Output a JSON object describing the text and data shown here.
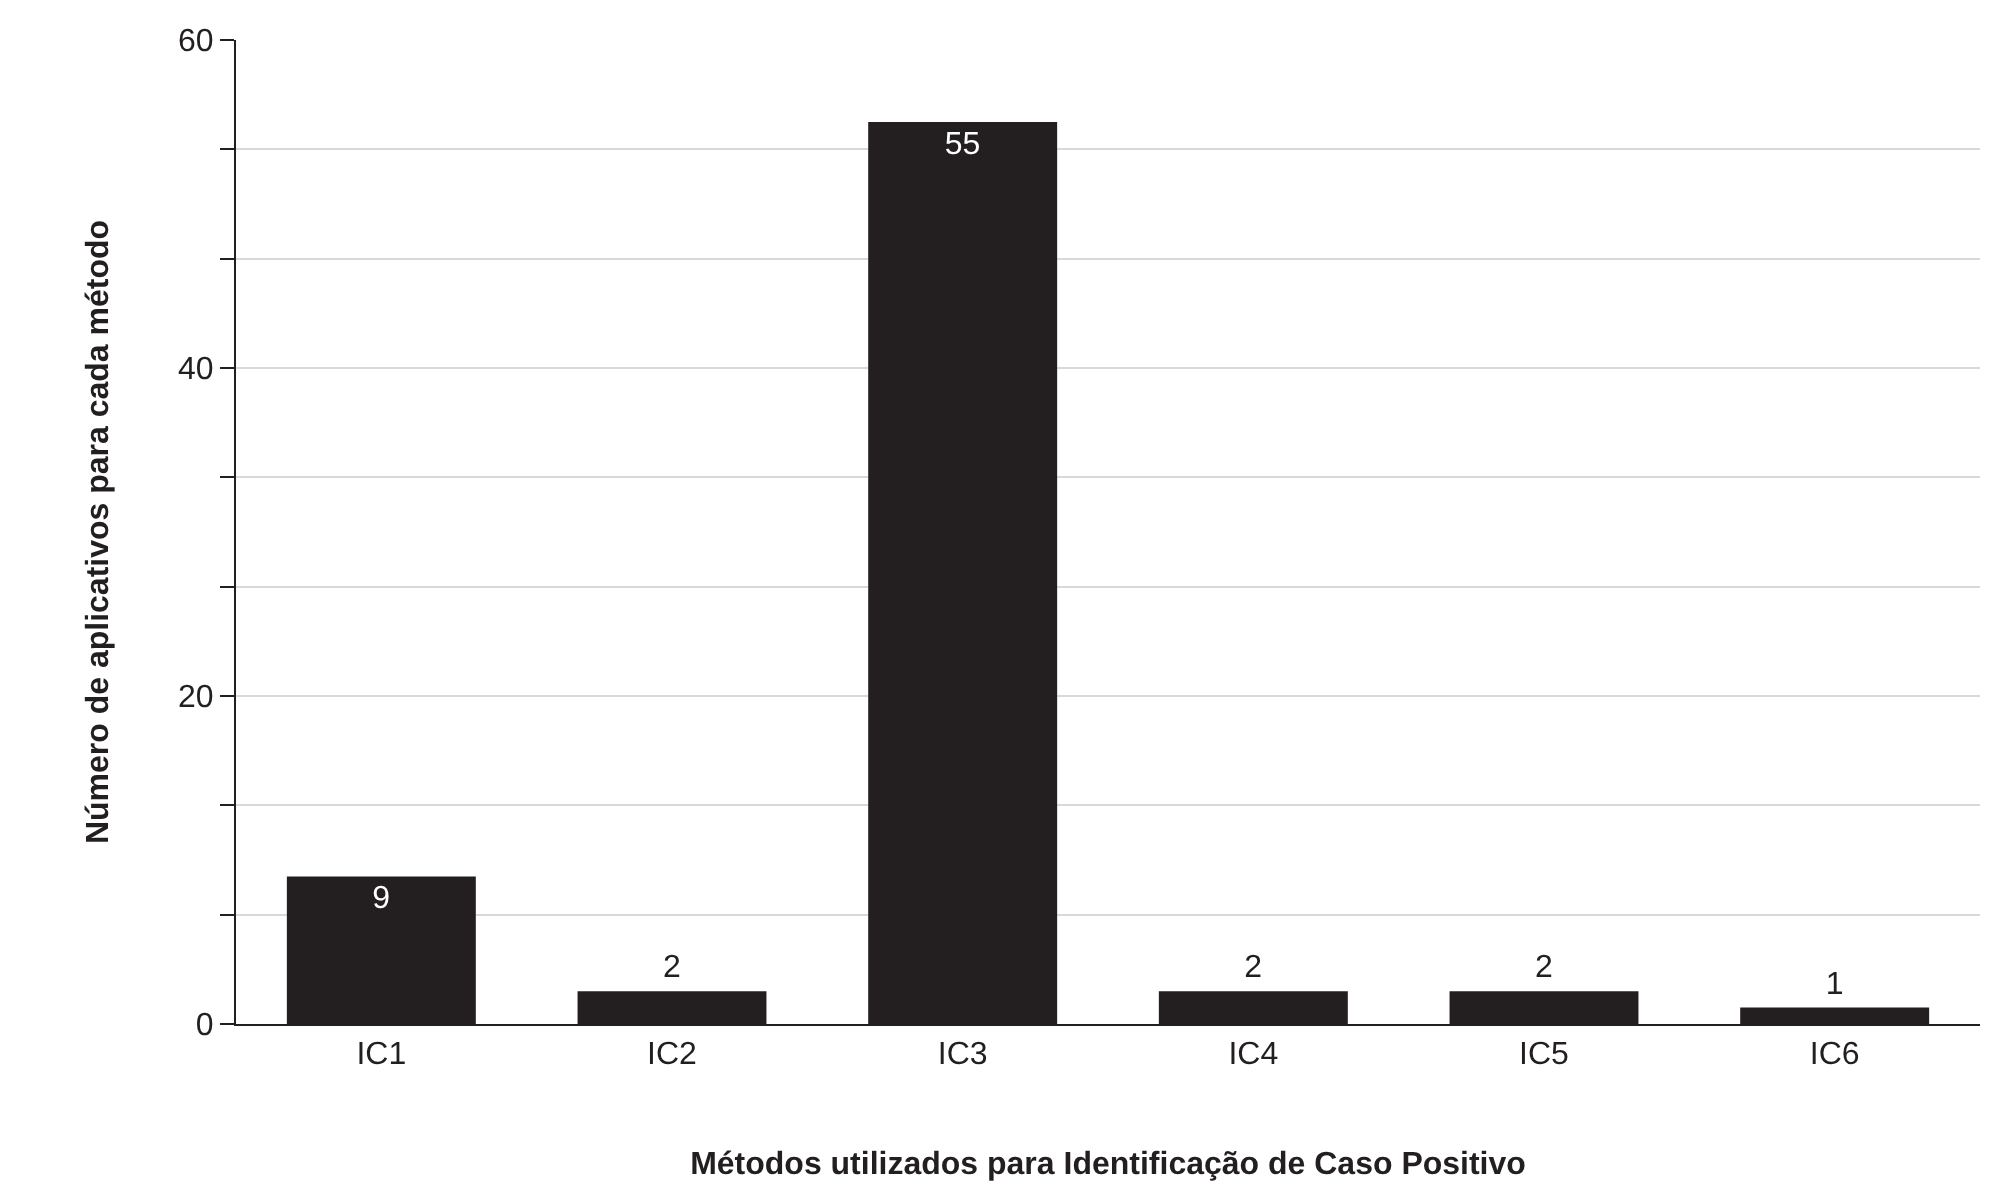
{
  "chart_data": {
    "type": "bar",
    "xlabel": "Métodos utilizados para Identificação de Caso Positivo",
    "ylabel": "Número de aplicativos para cada método",
    "categories": [
      "IC1",
      "IC2",
      "IC3",
      "IC4",
      "IC5",
      "IC6"
    ],
    "values": [
      9,
      2,
      55,
      2,
      2,
      1
    ],
    "color": "#231f20",
    "data_labels": true,
    "ylim": [
      0,
      60
    ],
    "yticks": [
      0,
      {
        "value": 6.67,
        "label": null
      },
      {
        "value": 13.33,
        "label": null
      },
      20,
      {
        "value": 26.67,
        "label": null
      },
      {
        "value": 33.33,
        "label": null
      },
      40,
      {
        "value": 46.67,
        "label": null
      },
      {
        "value": 53.33,
        "label": null
      },
      60
    ],
    "grid": "y"
  }
}
